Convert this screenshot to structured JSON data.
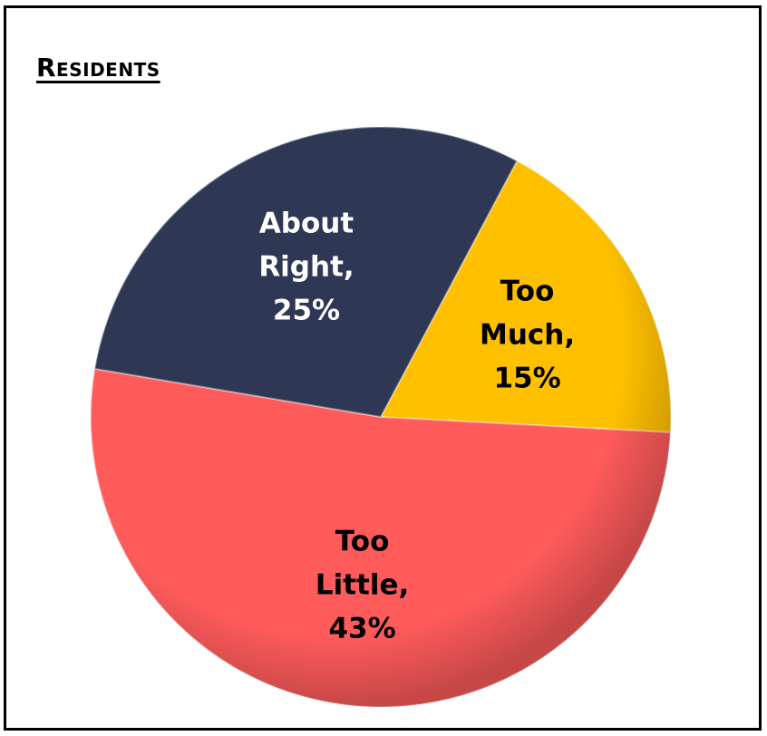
{
  "chart_data": {
    "type": "pie",
    "title": "Residents",
    "slices": [
      {
        "name": "Too Much",
        "value": 15,
        "label_lines": [
          "Too",
          "Much,",
          "15%"
        ],
        "color": "#FFC000",
        "label_color": "#000000"
      },
      {
        "name": "Too Little",
        "value": 43,
        "label_lines": [
          "Too",
          "Little,",
          "43%"
        ],
        "color": "#FF5B5B",
        "label_color": "#000000"
      },
      {
        "name": "About Right",
        "value": 25,
        "label_lines": [
          "About",
          "Right,",
          "25%"
        ],
        "color": "#2E3855",
        "label_color": "#FFFFFF"
      }
    ],
    "legend": "none",
    "grid": false
  }
}
